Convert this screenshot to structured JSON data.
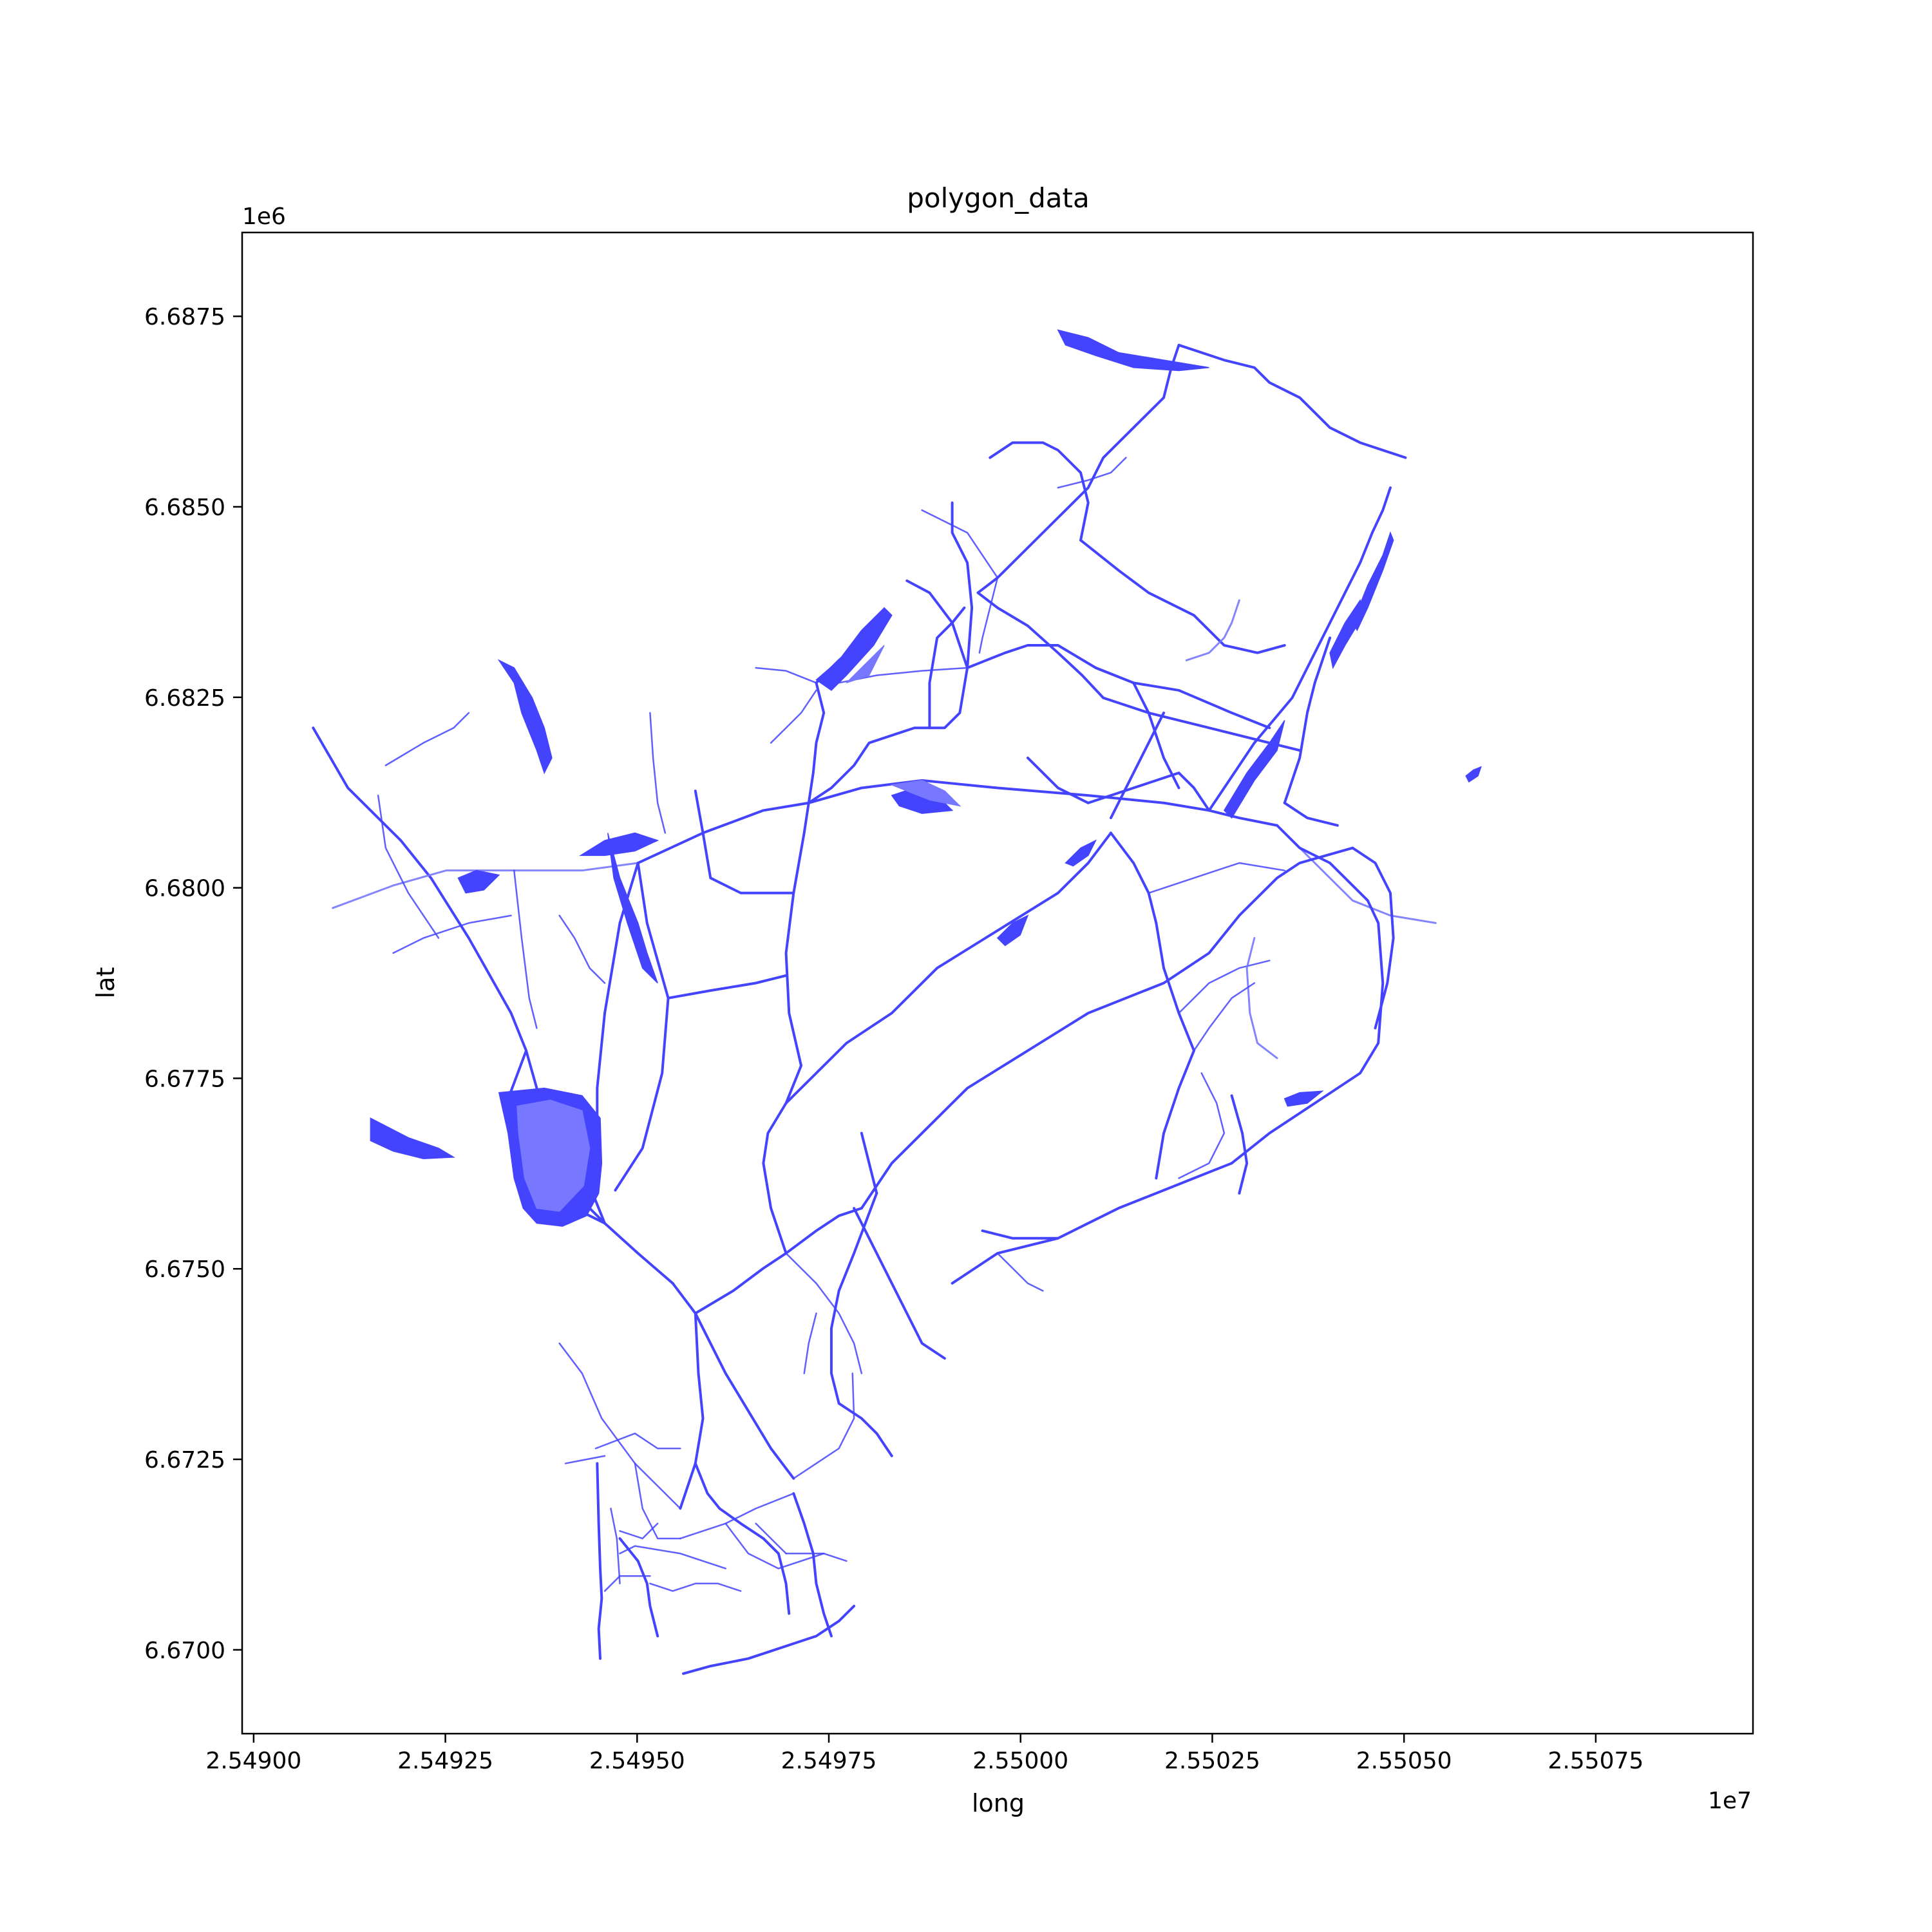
{
  "chart_data": {
    "type": "map",
    "title": "polygon_data",
    "xlabel": "long",
    "ylabel": "lat",
    "x_offset_label": "1e7",
    "y_offset_label": "1e6",
    "xlim": [
      2.548985,
      2.550955
    ],
    "ylim": [
      6.6689,
      6.6886
    ],
    "x_ticks": [
      {
        "value": 2.549,
        "label": "2.54900"
      },
      {
        "value": 2.54925,
        "label": "2.54925"
      },
      {
        "value": 2.5495,
        "label": "2.54950"
      },
      {
        "value": 2.54975,
        "label": "2.54975"
      },
      {
        "value": 2.55,
        "label": "2.55000"
      },
      {
        "value": 2.55025,
        "label": "2.55025"
      },
      {
        "value": 2.5505,
        "label": "2.55050"
      },
      {
        "value": 2.55075,
        "label": "2.55075"
      }
    ],
    "y_ticks": [
      {
        "value": 6.67,
        "label": "6.6700"
      },
      {
        "value": 6.6725,
        "label": "6.6725"
      },
      {
        "value": 6.675,
        "label": "6.6750"
      },
      {
        "value": 6.6775,
        "label": "6.6775"
      },
      {
        "value": 6.68,
        "label": "6.6800"
      },
      {
        "value": 6.6825,
        "label": "6.6825"
      },
      {
        "value": 6.685,
        "label": "6.6850"
      },
      {
        "value": 6.6875,
        "label": "6.6875"
      }
    ],
    "grid": false,
    "legend": "none",
    "colors": {
      "fill": "#4444ff",
      "fill_light": "#7777ff"
    },
    "features": [
      {
        "kind": "road",
        "coords": [
          [
            2.54909,
            6.6821
          ],
          [
            2.5492,
            6.6813
          ],
          [
            2.54935,
            6.6803
          ],
          [
            2.54955,
            6.6792
          ],
          [
            2.54968,
            6.6785
          ],
          [
            2.54975,
            6.6779
          ],
          [
            2.54985,
            6.6772
          ],
          [
            2.54995,
            6.6765
          ],
          [
            2.55005,
            6.6756
          ],
          [
            2.5501,
            6.6749
          ]
        ]
      },
      {
        "kind": "road",
        "coords": [
          [
            2.54909,
            6.682
          ],
          [
            2.54925,
            6.6813
          ],
          [
            2.54942,
            6.6806
          ],
          [
            2.54952,
            6.6801
          ],
          [
            2.54962,
            6.6797
          ],
          [
            2.5497,
            6.679
          ]
        ]
      }
    ]
  }
}
